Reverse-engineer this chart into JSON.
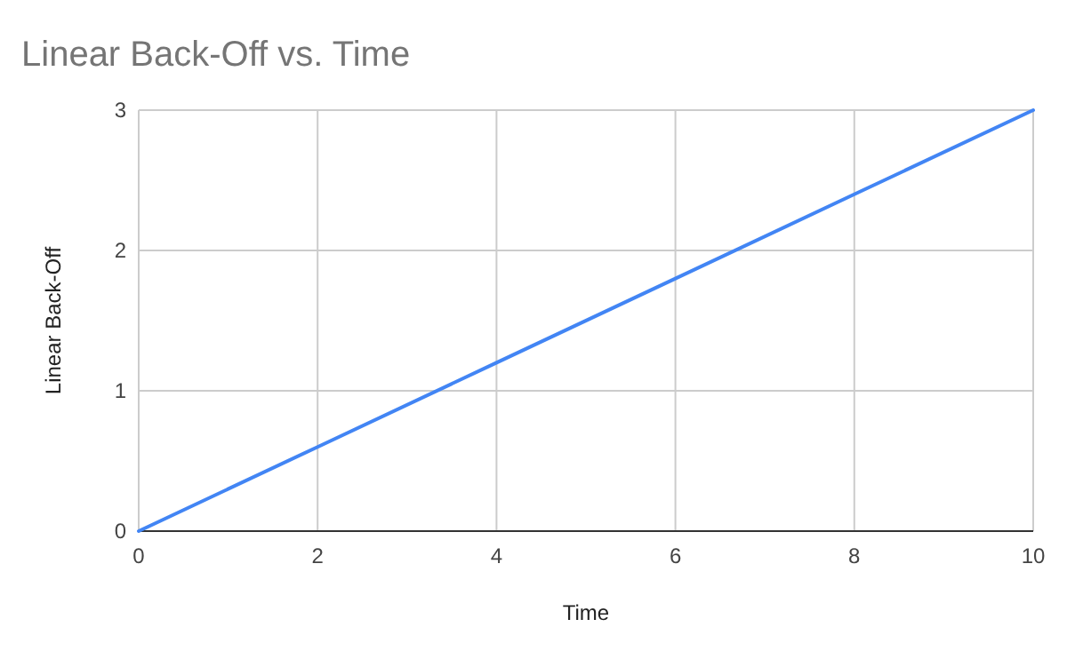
{
  "chart_data": {
    "type": "line",
    "title": "Linear Back-Off vs. Time",
    "xlabel": "Time",
    "ylabel": "Linear Back-Off",
    "x": [
      0,
      2,
      4,
      6,
      8,
      10
    ],
    "series": [
      {
        "color": "#4285f4",
        "values": [
          0,
          0.6,
          1.2,
          1.8,
          2.4,
          3
        ]
      }
    ],
    "xlim": [
      0,
      10
    ],
    "xticks": [
      0,
      2,
      4,
      6,
      8,
      10
    ],
    "ylim": [
      0,
      3
    ],
    "yticks": [
      0,
      1,
      2,
      3
    ],
    "grid": true,
    "marker": "none",
    "line_style": "solid"
  }
}
